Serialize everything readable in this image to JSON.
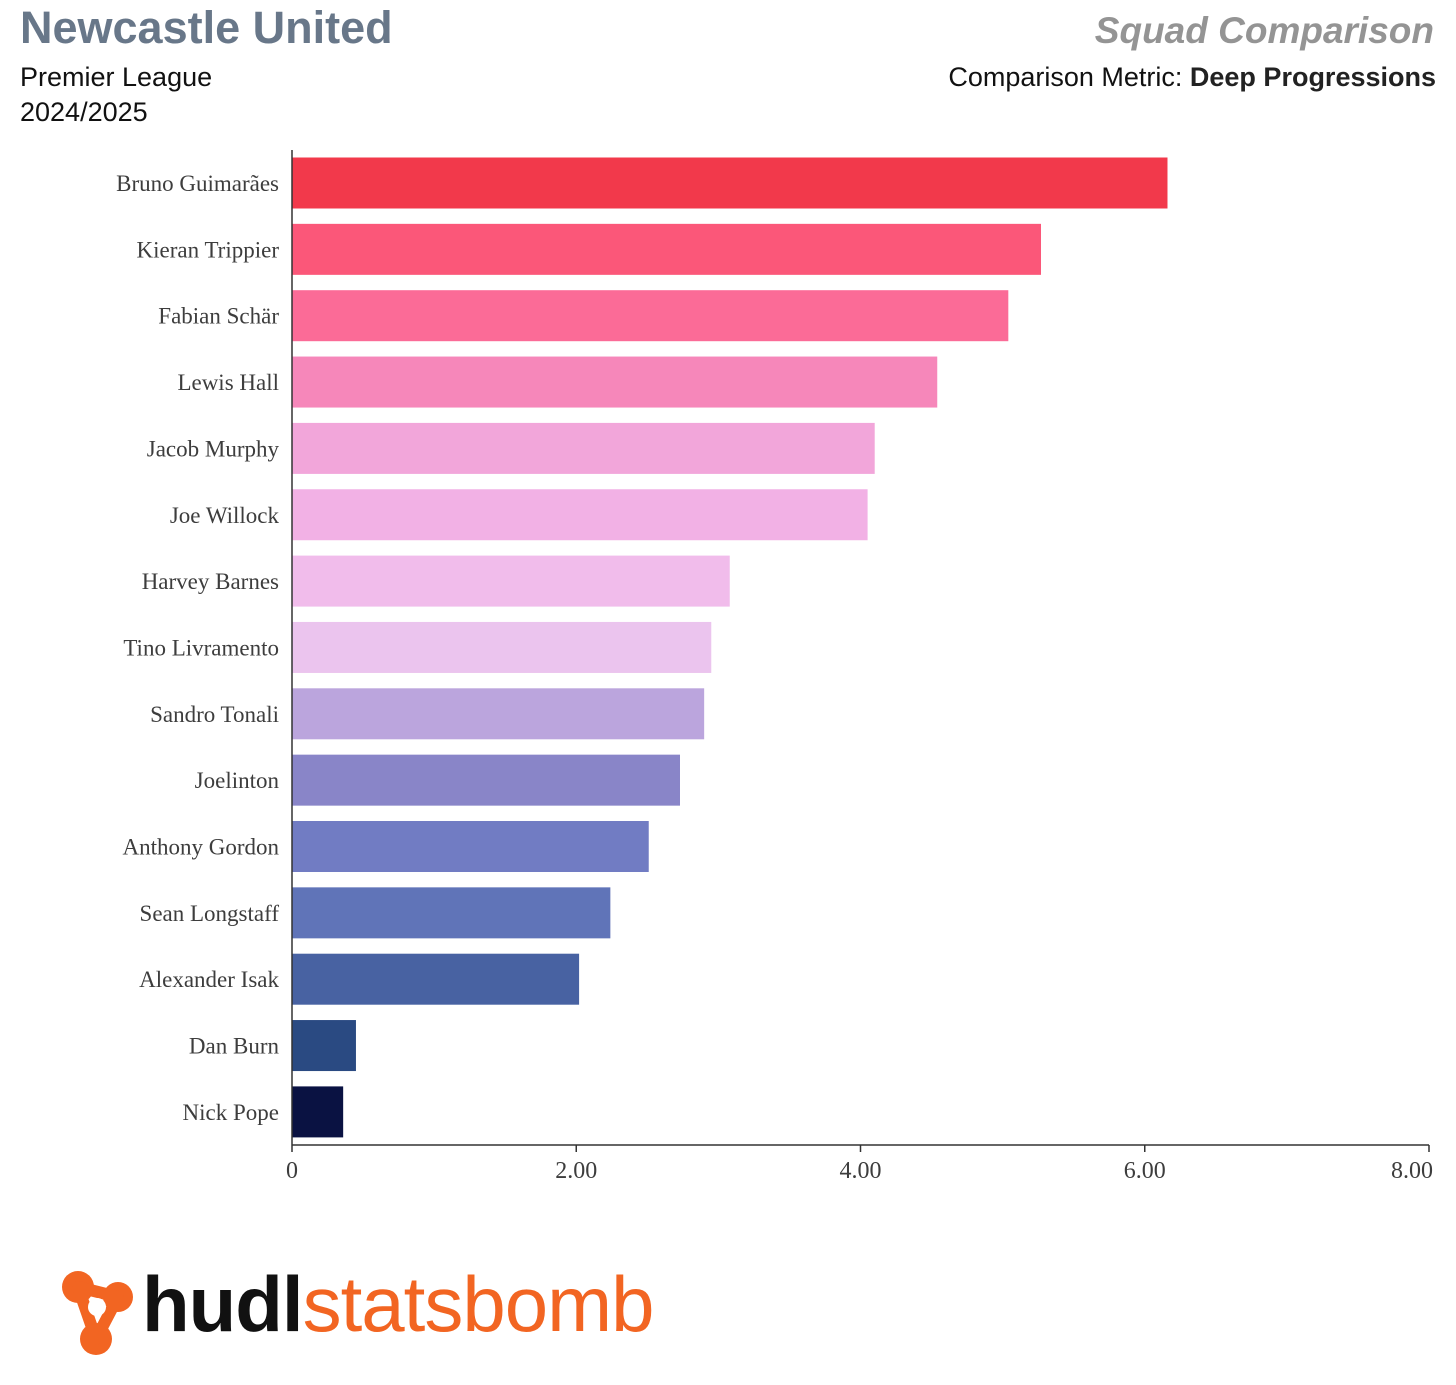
{
  "header": {
    "team": "Newcastle United",
    "competition": "Premier League",
    "season": "2024/2025",
    "report_title": "Squad Comparison",
    "metric_prefix": "Comparison Metric: ",
    "metric_name": "Deep Progressions"
  },
  "logo": {
    "text_bold": "hudl",
    "text_light": "statsbomb",
    "icon": "statsbomb-logo-icon",
    "colors": {
      "hudl": "#111111",
      "statsbomb": "#f26522"
    }
  },
  "chart_data": {
    "type": "bar",
    "orientation": "horizontal",
    "categories": [
      "Bruno Guimarães",
      "Kieran Trippier",
      "Fabian Schär",
      "Lewis Hall",
      "Jacob Murphy",
      "Joe Willock",
      "Harvey Barnes",
      "Tino Livramento",
      "Sandro Tonali",
      "Joelinton",
      "Anthony Gordon",
      "Sean Longstaff",
      "Alexander Isak",
      "Dan Burn",
      "Nick Pope"
    ],
    "values": [
      6.16,
      5.27,
      5.04,
      4.54,
      4.1,
      4.05,
      3.08,
      2.95,
      2.9,
      2.73,
      2.51,
      2.24,
      2.02,
      0.45,
      0.36
    ],
    "colors": [
      "#f2394b",
      "#fb5779",
      "#fb6b97",
      "#f687ba",
      "#f2a6da",
      "#f2b1e5",
      "#f1bceb",
      "#ebc4ee",
      "#bba5dd",
      "#8985c8",
      "#717cc3",
      "#6074b8",
      "#4862a2",
      "#2a4a82",
      "#0a1242"
    ],
    "xlim": [
      0,
      8
    ],
    "xticks": [
      0,
      2,
      4,
      6,
      8
    ],
    "xtick_labels": [
      "0",
      "2.00",
      "4.00",
      "6.00",
      "8.00"
    ],
    "title": "",
    "xlabel": "",
    "ylabel": "",
    "grid": false,
    "legend": "none"
  }
}
